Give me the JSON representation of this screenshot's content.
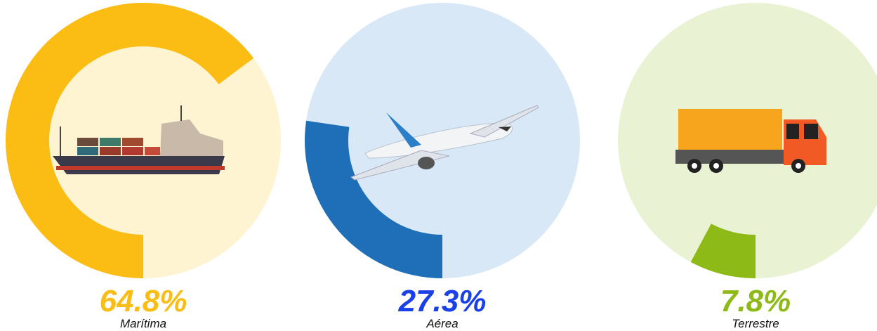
{
  "chart_data": {
    "type": "radial",
    "categories": [
      "Marítima",
      "Aérea",
      "Terrestre"
    ],
    "values": [
      64.8,
      27.3,
      7.8
    ],
    "value_labels": [
      "64.8%",
      "27.3%",
      "7.8%"
    ],
    "colors": [
      "#fbbc13",
      "#1f6fb8",
      "#8dba17"
    ],
    "track_colors": [
      "#fef4d1",
      "#d8e8f6",
      "#e9f2d3"
    ],
    "label_colors": [
      "#fbbc13",
      "#1a40e8",
      "#8dba17"
    ]
  }
}
